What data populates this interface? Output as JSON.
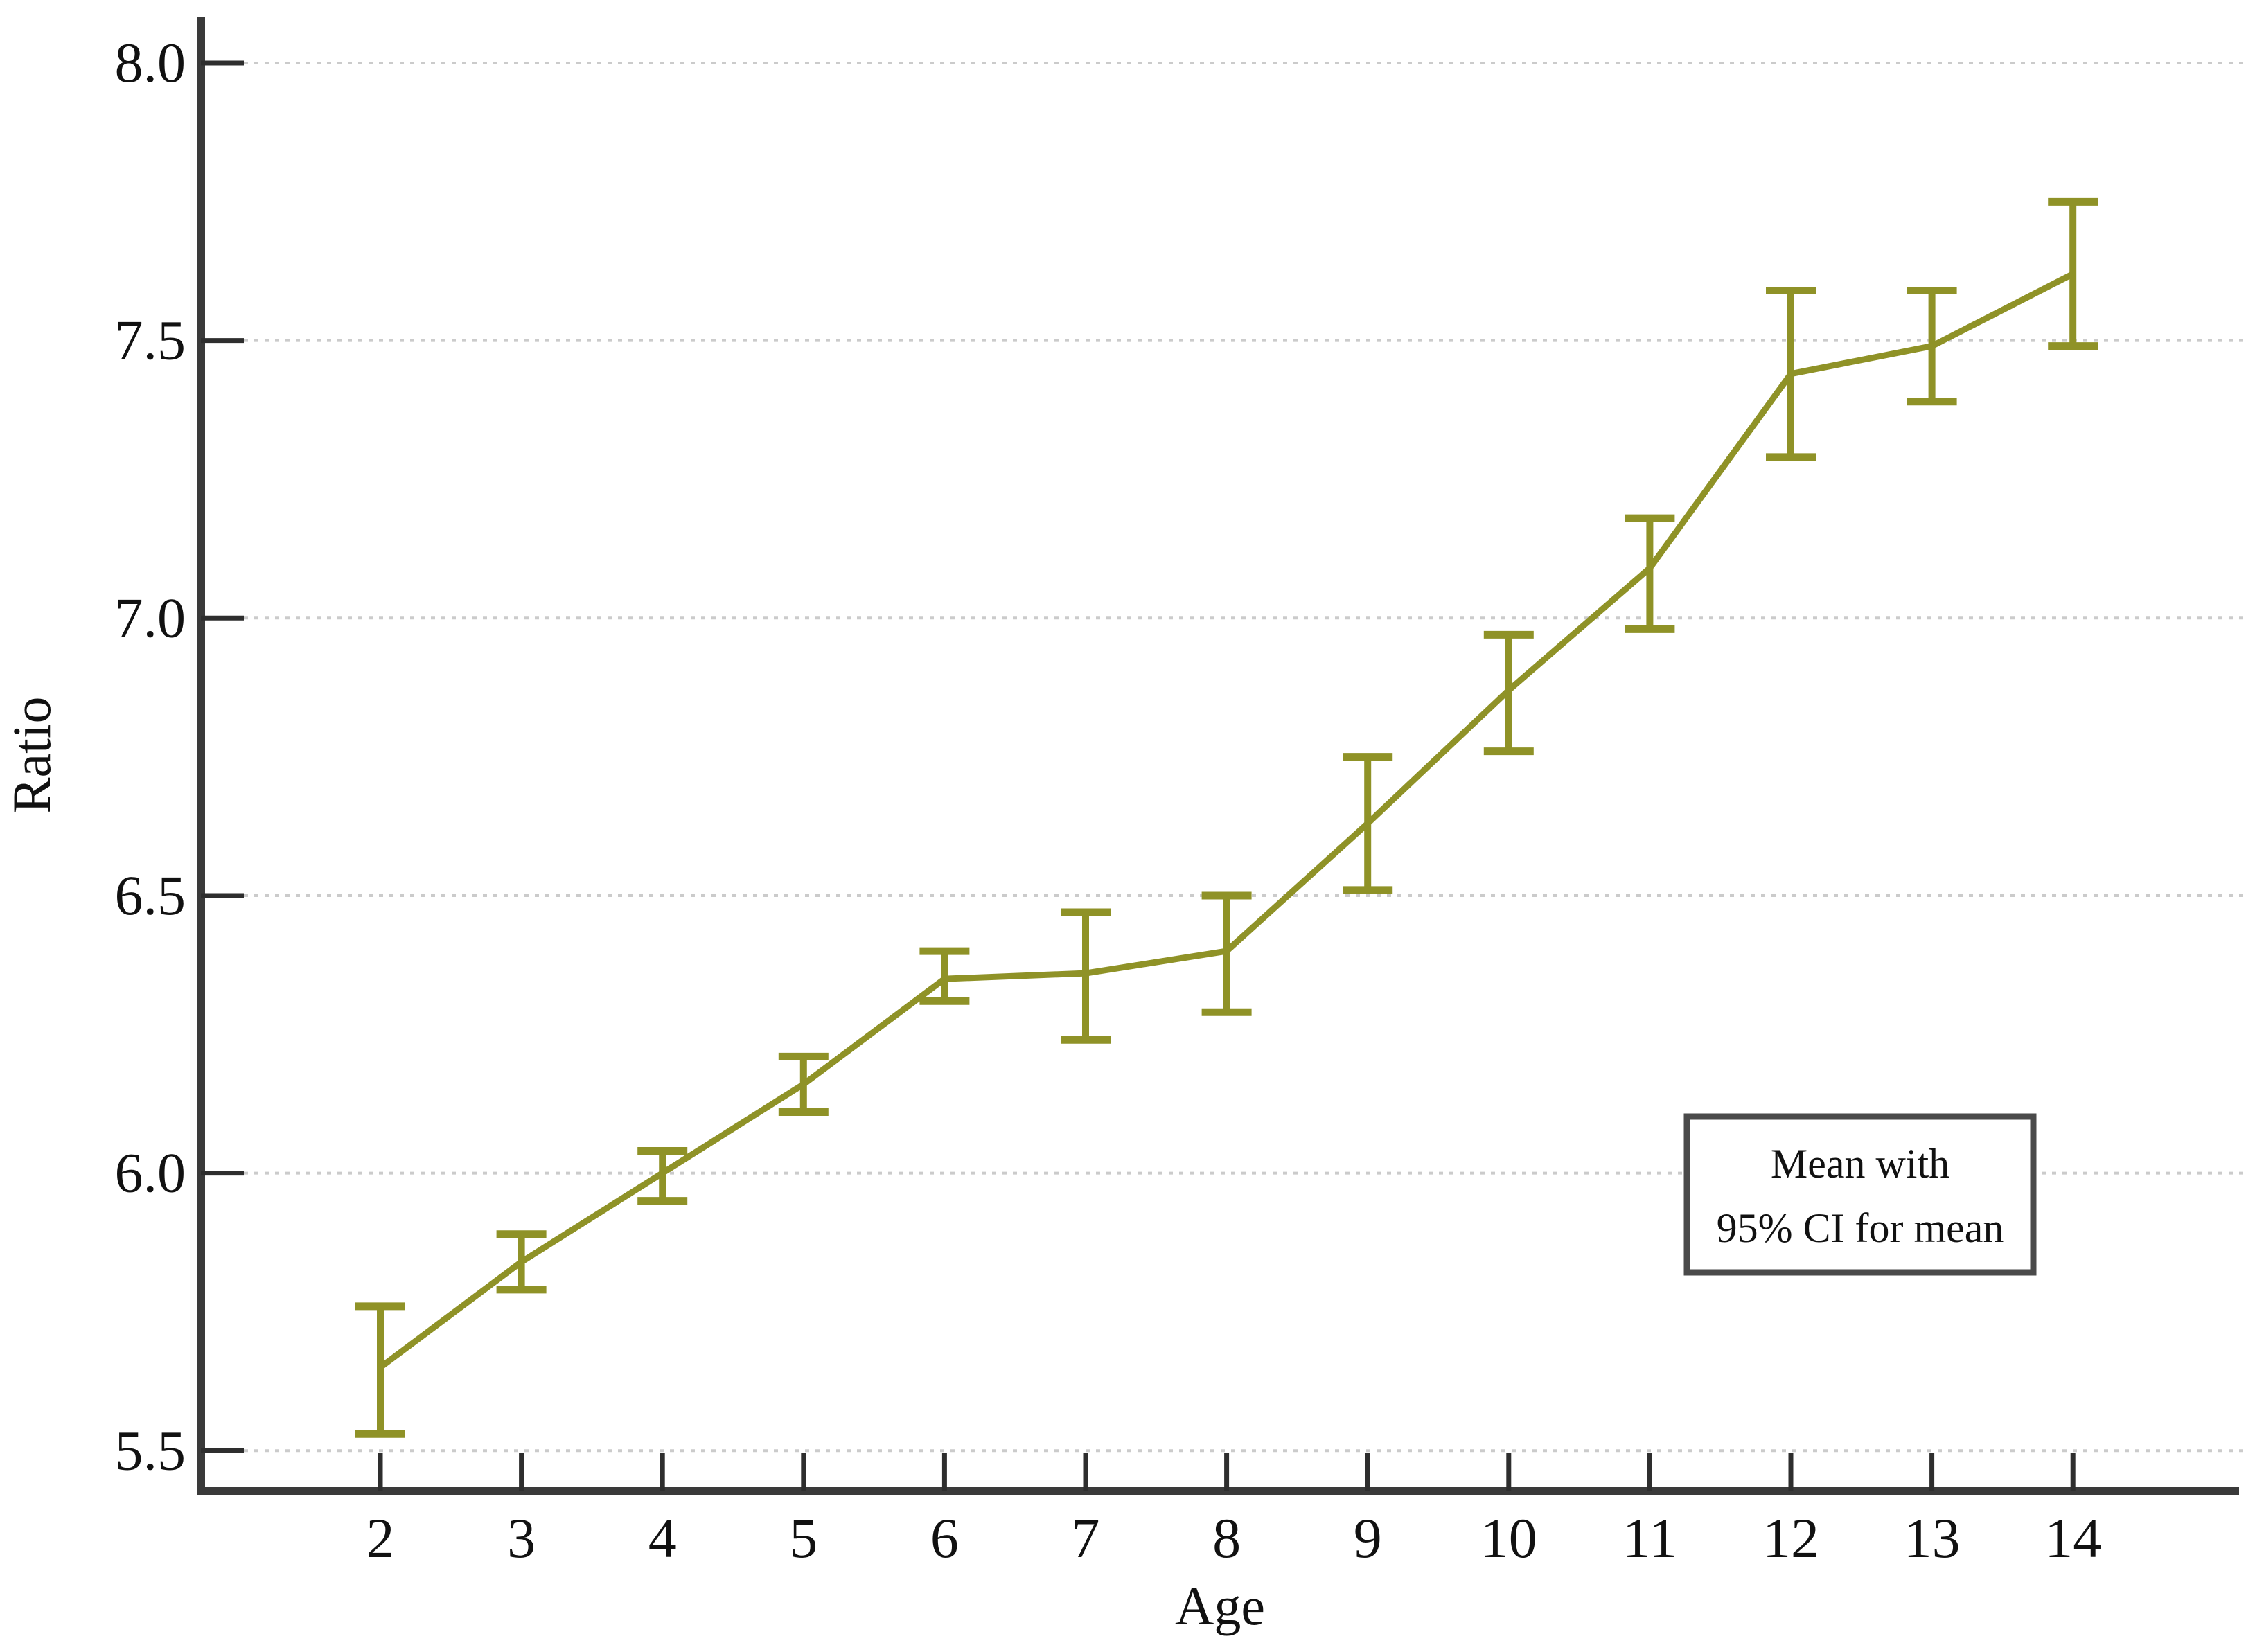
{
  "chart_data": {
    "type": "line",
    "title": "",
    "xlabel": "Age",
    "ylabel": "Ratio",
    "categories": [
      "2",
      "3",
      "4",
      "5",
      "6",
      "7",
      "8",
      "9",
      "10",
      "11",
      "12",
      "13",
      "14"
    ],
    "series": [
      {
        "name": "Mean",
        "values": [
          5.65,
          5.84,
          6.0,
          6.16,
          6.35,
          6.36,
          6.4,
          6.63,
          6.87,
          7.09,
          7.44,
          7.49,
          7.62
        ]
      }
    ],
    "error_bars": {
      "name": "95% CI for mean",
      "lower": [
        5.53,
        5.79,
        5.95,
        6.11,
        6.31,
        6.24,
        6.29,
        6.51,
        6.76,
        6.98,
        7.29,
        7.39,
        7.49
      ],
      "upper": [
        5.76,
        5.89,
        6.04,
        6.21,
        6.4,
        6.47,
        6.5,
        6.75,
        6.97,
        7.18,
        7.59,
        7.59,
        7.75
      ]
    },
    "y_ticks": {
      "values": [
        8.0,
        7.5,
        7.0,
        6.5,
        6.0,
        5.5
      ],
      "labels": [
        "8.0",
        "7.5",
        "7.0",
        "6.5",
        "6.0",
        "5.5"
      ]
    },
    "ylim": [
      5.43,
      8.08
    ],
    "grid": "horizontal-dotted",
    "legend": {
      "line1": "Mean with",
      "line2": "95% CI for mean",
      "position": "lower-right"
    },
    "colors": {
      "series": "#8f9227",
      "axis": "#3a3a3a",
      "tick": "#2e2e2e",
      "gridline": "#cbcbcb",
      "legend_border": "#4a4a4a",
      "text": "#111111",
      "background": "#ffffff"
    }
  }
}
